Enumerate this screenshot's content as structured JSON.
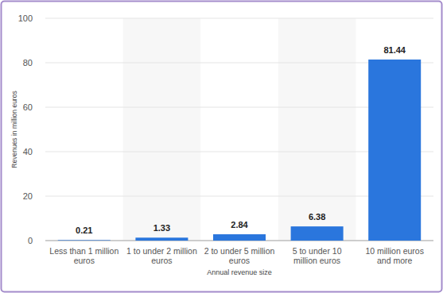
{
  "chart_data": {
    "type": "bar",
    "x_label": "Annual revenue size",
    "y_label": "Revenues in million euros",
    "categories": [
      "Less than 1 million euros",
      "1 to under 2 million euros",
      "2 to under 5 million euros",
      "5 to under 10 million euros",
      "10 million euros and more"
    ],
    "values": [
      0.21,
      1.33,
      2.84,
      6.38,
      81.44
    ],
    "color": "#2a76dd",
    "ylim": [
      0,
      100
    ],
    "yticks": [
      0,
      20,
      40,
      60,
      80,
      100
    ],
    "grid": true,
    "data_labels": true
  }
}
